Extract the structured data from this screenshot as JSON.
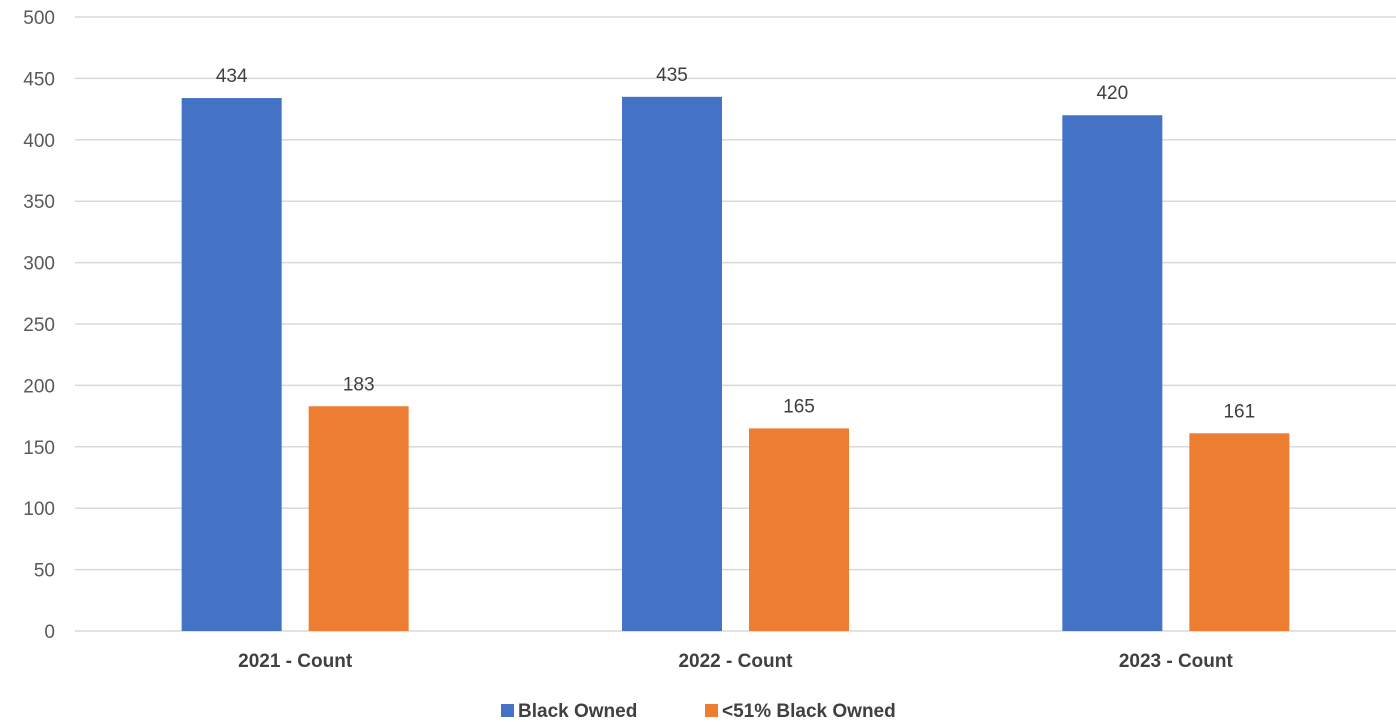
{
  "chart_data": {
    "type": "bar",
    "title": "",
    "xlabel": "",
    "ylabel": "",
    "categories": [
      "2021 - Count",
      "2022 - Count",
      "2023 - Count"
    ],
    "series": [
      {
        "name": "Black Owned",
        "values": [
          434,
          435,
          420
        ],
        "color": "#4472c4"
      },
      {
        "name": "<51% Black Owned",
        "values": [
          183,
          165,
          161
        ],
        "color": "#ed7d31"
      }
    ],
    "ylim": [
      0,
      500
    ],
    "yticks": [
      0,
      50,
      100,
      150,
      200,
      250,
      300,
      350,
      400,
      450,
      500
    ],
    "grid": true,
    "legend_position": "bottom"
  }
}
